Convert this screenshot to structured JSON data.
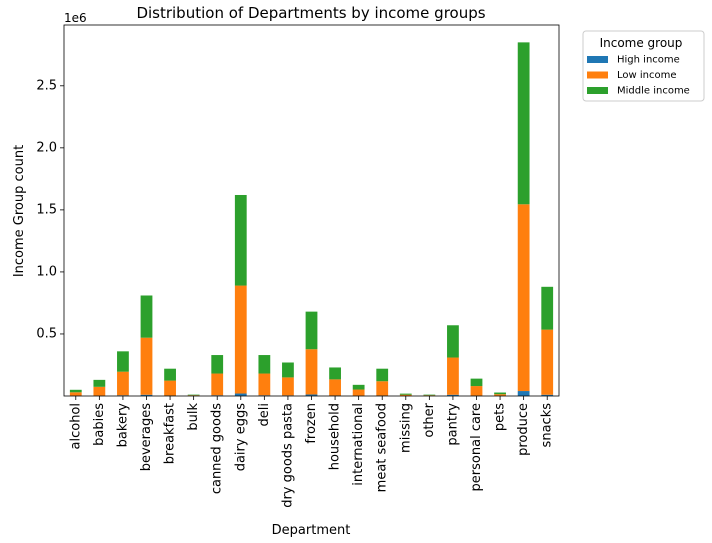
{
  "chart_data": {
    "type": "bar",
    "stacked": true,
    "title": "Distribution of Departments by income groups",
    "xlabel": "Department",
    "ylabel": "Income Group count",
    "y_offset_label": "1e6",
    "ylim": [
      0,
      2.99
    ],
    "yticks": [
      0.5,
      1.0,
      1.5,
      2.0,
      2.5
    ],
    "ytick_labels": [
      "0.5",
      "1.0",
      "1.5",
      "2.0",
      "2.5"
    ],
    "legend_title": "Income group",
    "legend_position": "outside-top-right",
    "categories": [
      "alcohol",
      "babies",
      "bakery",
      "beverages",
      "breakfast",
      "bulk",
      "canned goods",
      "dairy eggs",
      "deli",
      "dry goods pasta",
      "frozen",
      "household",
      "international",
      "meat seafood",
      "missing",
      "other",
      "pantry",
      "personal care",
      "pets",
      "produce",
      "snacks"
    ],
    "series": [
      {
        "name": "High income",
        "color": "#1f77b4",
        "values": [
          0.002,
          0.002,
          0.006,
          0.01,
          0.004,
          0.0003,
          0.006,
          0.02,
          0.006,
          0.005,
          0.012,
          0.004,
          0.002,
          0.004,
          0.0004,
          0.0002,
          0.01,
          0.003,
          0.0006,
          0.04,
          0.01
        ]
      },
      {
        "name": "Low income",
        "color": "#ff7f0e",
        "values": [
          0.028,
          0.072,
          0.19,
          0.46,
          0.12,
          0.006,
          0.175,
          0.87,
          0.175,
          0.145,
          0.365,
          0.13,
          0.05,
          0.115,
          0.01,
          0.006,
          0.3,
          0.077,
          0.014,
          1.505,
          0.525
        ]
      },
      {
        "name": "Middle income",
        "color": "#2ca02c",
        "values": [
          0.02,
          0.056,
          0.164,
          0.34,
          0.096,
          0.0047,
          0.149,
          0.73,
          0.149,
          0.12,
          0.303,
          0.096,
          0.038,
          0.101,
          0.0086,
          0.0048,
          0.26,
          0.06,
          0.0134,
          1.305,
          0.345
        ]
      }
    ]
  }
}
